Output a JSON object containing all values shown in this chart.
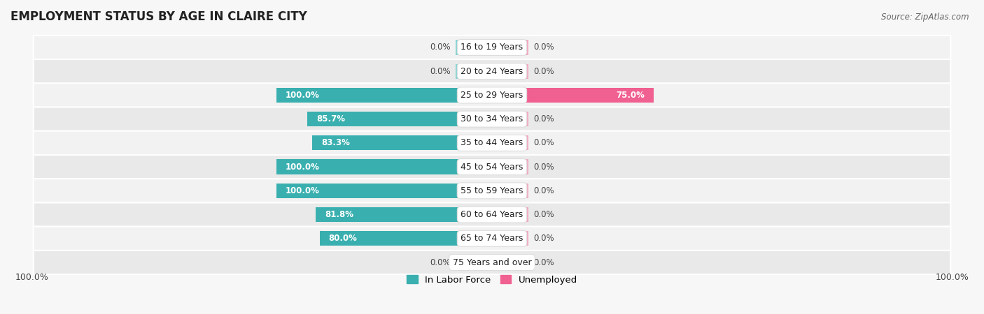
{
  "title": "EMPLOYMENT STATUS BY AGE IN CLAIRE CITY",
  "source": "Source: ZipAtlas.com",
  "categories": [
    "16 to 19 Years",
    "20 to 24 Years",
    "25 to 29 Years",
    "30 to 34 Years",
    "35 to 44 Years",
    "45 to 54 Years",
    "55 to 59 Years",
    "60 to 64 Years",
    "65 to 74 Years",
    "75 Years and over"
  ],
  "labor_force": [
    0.0,
    0.0,
    100.0,
    85.7,
    83.3,
    100.0,
    100.0,
    81.8,
    80.0,
    0.0
  ],
  "unemployed": [
    0.0,
    0.0,
    75.0,
    0.0,
    0.0,
    0.0,
    0.0,
    0.0,
    0.0,
    0.0
  ],
  "labor_color_full": "#3aafaf",
  "labor_color_stub": "#88d4d4",
  "unemployed_color_full": "#f06090",
  "unemployed_color_stub": "#f4a8c0",
  "row_colors": [
    "#f2f2f2",
    "#e9e9e9"
  ],
  "label_white": "#ffffff",
  "label_dark": "#444444",
  "title_fontsize": 12,
  "source_fontsize": 8.5,
  "bar_label_fontsize": 8.5,
  "category_fontsize": 9,
  "axis_label_fontsize": 9,
  "x_left_label": "100.0%",
  "x_right_label": "100.0%",
  "legend_labor": "In Labor Force",
  "legend_unemployed": "Unemployed",
  "stub_size": 8.0
}
